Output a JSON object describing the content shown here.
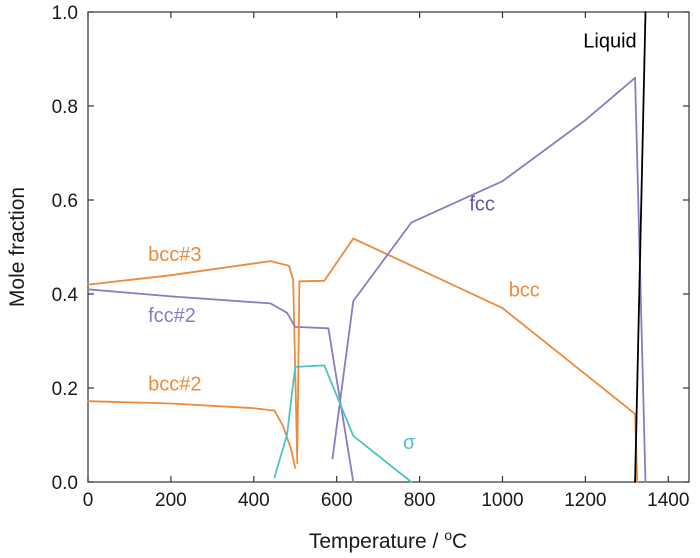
{
  "chart_data": {
    "type": "line",
    "title": "",
    "xlabel": "Temperature / ",
    "xlabel_superscript": "o",
    "xlabel_unit": "C",
    "ylabel": "Mole fraction",
    "xlim": [
      0,
      1450
    ],
    "ylim": [
      0,
      1.0
    ],
    "xticks": [
      0,
      200,
      400,
      600,
      800,
      1000,
      1200,
      1400
    ],
    "xtick_labels": [
      "0",
      "200",
      "400",
      "600",
      "800",
      "1000",
      "1200",
      "1400"
    ],
    "yticks": [
      0,
      0.2,
      0.4,
      0.6,
      0.8,
      1.0
    ],
    "ytick_labels": [
      "0.0",
      "0.2",
      "0.4",
      "0.6",
      "0.8",
      "1.0"
    ],
    "grid": false,
    "colors": {
      "orange": "#ee8a3a",
      "purple": "#8c7bc2",
      "teal": "#4cc4c4",
      "black": "#000000"
    },
    "series": [
      {
        "name": "bcc#3",
        "color": "#ee8a3a",
        "points": [
          [
            0,
            0.42
          ],
          [
            200,
            0.44
          ],
          [
            440,
            0.47
          ],
          [
            485,
            0.46
          ],
          [
            495,
            0.43
          ],
          [
            505,
            0.04
          ]
        ]
      },
      {
        "name": "fcc#2",
        "color": "#8c7bc2",
        "points": [
          [
            0,
            0.41
          ],
          [
            200,
            0.395
          ],
          [
            440,
            0.38
          ],
          [
            480,
            0.36
          ],
          [
            500,
            0.33
          ],
          [
            580,
            0.327
          ],
          [
            640,
            0.0
          ]
        ]
      },
      {
        "name": "bcc#2",
        "color": "#ee8a3a",
        "points": [
          [
            0,
            0.172
          ],
          [
            200,
            0.167
          ],
          [
            400,
            0.157
          ],
          [
            450,
            0.152
          ],
          [
            470,
            0.12
          ],
          [
            490,
            0.07
          ],
          [
            500,
            0.03
          ]
        ]
      },
      {
        "name": "",
        "color": "#ee8a3a",
        "points": [
          [
            505,
            0.06
          ],
          [
            510,
            0.427
          ],
          [
            570,
            0.428
          ],
          [
            640,
            0.518
          ],
          [
            1000,
            0.37
          ],
          [
            1320,
            0.145
          ]
        ]
      },
      {
        "name": "bcc",
        "color": "#ee8a3a",
        "points": [
          [
            1320,
            0.145
          ],
          [
            1325,
            0.0
          ]
        ]
      },
      {
        "name": "fcc",
        "color": "#8c7bc2",
        "points": [
          [
            590,
            0.05
          ],
          [
            640,
            0.385
          ],
          [
            780,
            0.552
          ],
          [
            1000,
            0.64
          ],
          [
            1200,
            0.77
          ],
          [
            1320,
            0.86
          ],
          [
            1345,
            0.0
          ]
        ]
      },
      {
        "name": "σ",
        "color": "#4cc4c4",
        "points": [
          [
            450,
            0.01
          ],
          [
            480,
            0.1
          ],
          [
            500,
            0.245
          ],
          [
            570,
            0.248
          ],
          [
            640,
            0.098
          ],
          [
            780,
            0.0
          ]
        ]
      },
      {
        "name": "Liquid",
        "color": "#000000",
        "points": [
          [
            1320,
            0.0
          ],
          [
            1345,
            1.0
          ]
        ]
      }
    ],
    "annotations": [
      {
        "text": "Liquid",
        "x": 1195,
        "y": 0.925,
        "color": "#000000"
      },
      {
        "text": "fcc",
        "x": 920,
        "y": 0.578,
        "color": "#5a5aa8"
      },
      {
        "text": "bcc#3",
        "x": 145,
        "y": 0.47,
        "color": "#ee8a3a"
      },
      {
        "text": "bcc",
        "x": 1015,
        "y": 0.395,
        "color": "#ee8a3a"
      },
      {
        "text": "fcc#2",
        "x": 145,
        "y": 0.34,
        "color": "#8c7bc2"
      },
      {
        "text": "bcc#2",
        "x": 145,
        "y": 0.195,
        "color": "#ee8a3a"
      },
      {
        "text": "σ",
        "x": 760,
        "y": 0.07,
        "color": "#4cc4c4"
      }
    ]
  }
}
